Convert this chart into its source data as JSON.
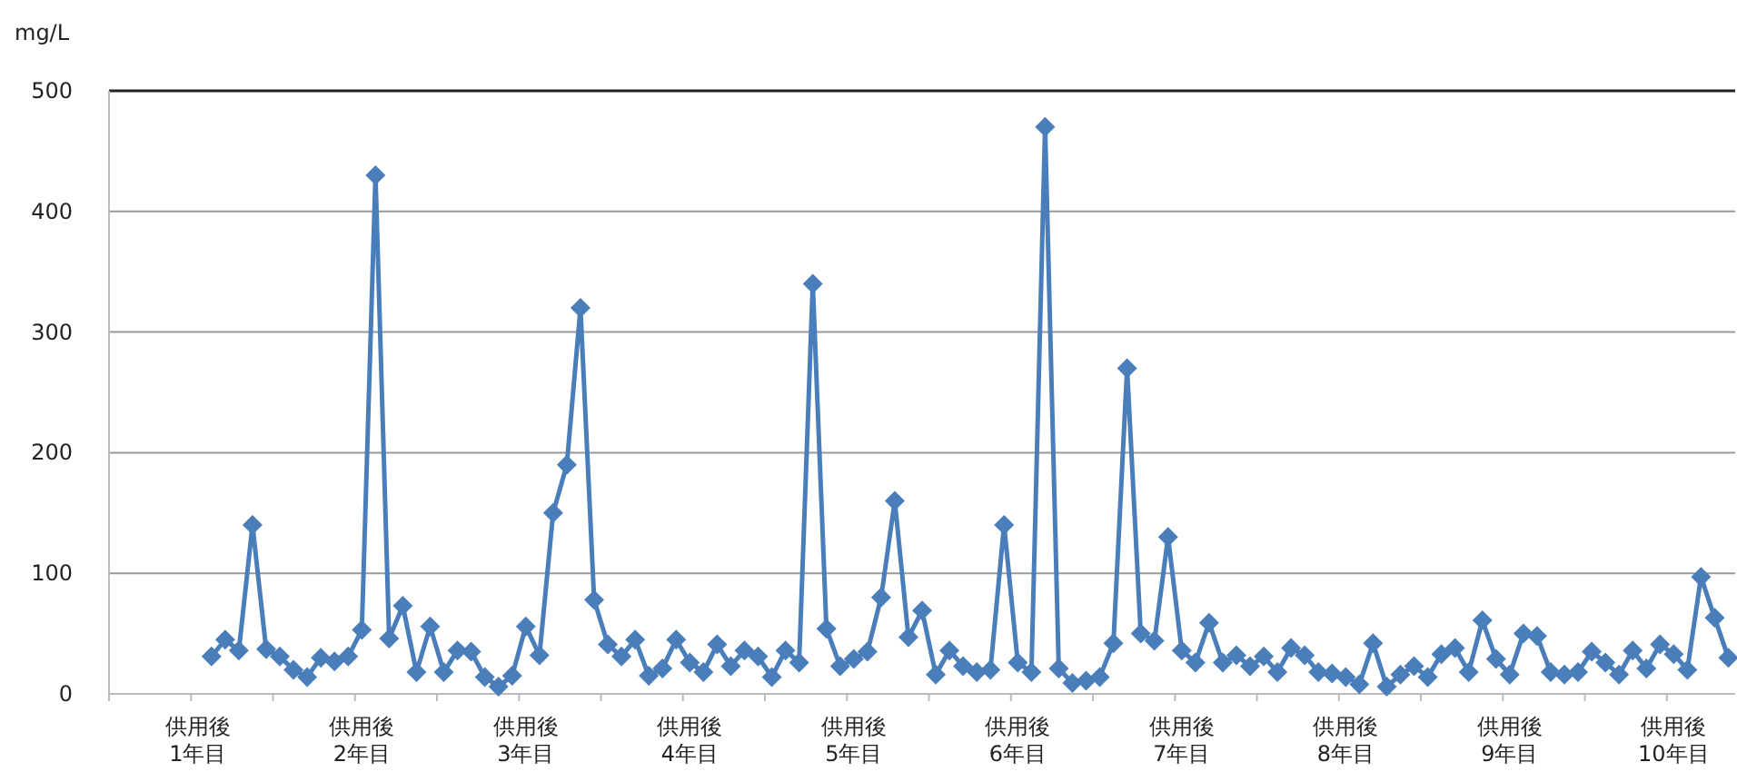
{
  "chart_data": {
    "type": "line",
    "ylabel": "mg/L",
    "categories": [
      null,
      null,
      null,
      null,
      null,
      null,
      "供用後\n1年目",
      null,
      null,
      null,
      null,
      null,
      null,
      null,
      null,
      null,
      null,
      null,
      "供用後\n2年目",
      null,
      null,
      null,
      null,
      null,
      null,
      null,
      null,
      null,
      null,
      null,
      "供用後\n3年目",
      null,
      null,
      null,
      null,
      null,
      null,
      null,
      null,
      null,
      null,
      null,
      "供用後\n4年目",
      null,
      null,
      null,
      null,
      null,
      null,
      null,
      null,
      null,
      null,
      null,
      "供用後\n5年目",
      null,
      null,
      null,
      null,
      null,
      null,
      null,
      null,
      null,
      null,
      null,
      "供用後\n6年目",
      null,
      null,
      null,
      null,
      null,
      null,
      null,
      null,
      null,
      null,
      null,
      "供用後\n7年目",
      null,
      null,
      null,
      null,
      null,
      null,
      null,
      null,
      null,
      null,
      null,
      "供用後\n8年目",
      null,
      null,
      null,
      null,
      null,
      null,
      null,
      null,
      null,
      null,
      null,
      "供用後\n9年目",
      null,
      null,
      null,
      null,
      null,
      null,
      null,
      null,
      null,
      null,
      null,
      "供用後\n10年目",
      null,
      null,
      null,
      null
    ],
    "series": [
      {
        "color": "#4a7ebb",
        "values": [
          null,
          null,
          null,
          null,
          null,
          null,
          null,
          31,
          45,
          36,
          140,
          37,
          31,
          20,
          14,
          30,
          27,
          31,
          53,
          430,
          46,
          73,
          18,
          56,
          18,
          36,
          35,
          14,
          6,
          15,
          56,
          32,
          150,
          190,
          320,
          78,
          41,
          31,
          45,
          15,
          21,
          45,
          26,
          18,
          41,
          23,
          36,
          31,
          14,
          36,
          26,
          340,
          54,
          23,
          29,
          35,
          80,
          160,
          47,
          69,
          16,
          36,
          23,
          18,
          20,
          140,
          26,
          18,
          470,
          21,
          9,
          11,
          14,
          42,
          270,
          50,
          44,
          130,
          36,
          26,
          59,
          26,
          32,
          23,
          31,
          18,
          38,
          32,
          18,
          17,
          14,
          8,
          42,
          6,
          16,
          23,
          14,
          33,
          38,
          18,
          61,
          29,
          16,
          50,
          48,
          18,
          16,
          18,
          35,
          26,
          16,
          36,
          21,
          41,
          33,
          20,
          97,
          63,
          30
        ]
      }
    ],
    "ylim": [
      0,
      500
    ],
    "yticks": [
      0,
      100,
      200,
      300,
      400,
      500
    ],
    "grid": "y",
    "marker": "diamond"
  }
}
